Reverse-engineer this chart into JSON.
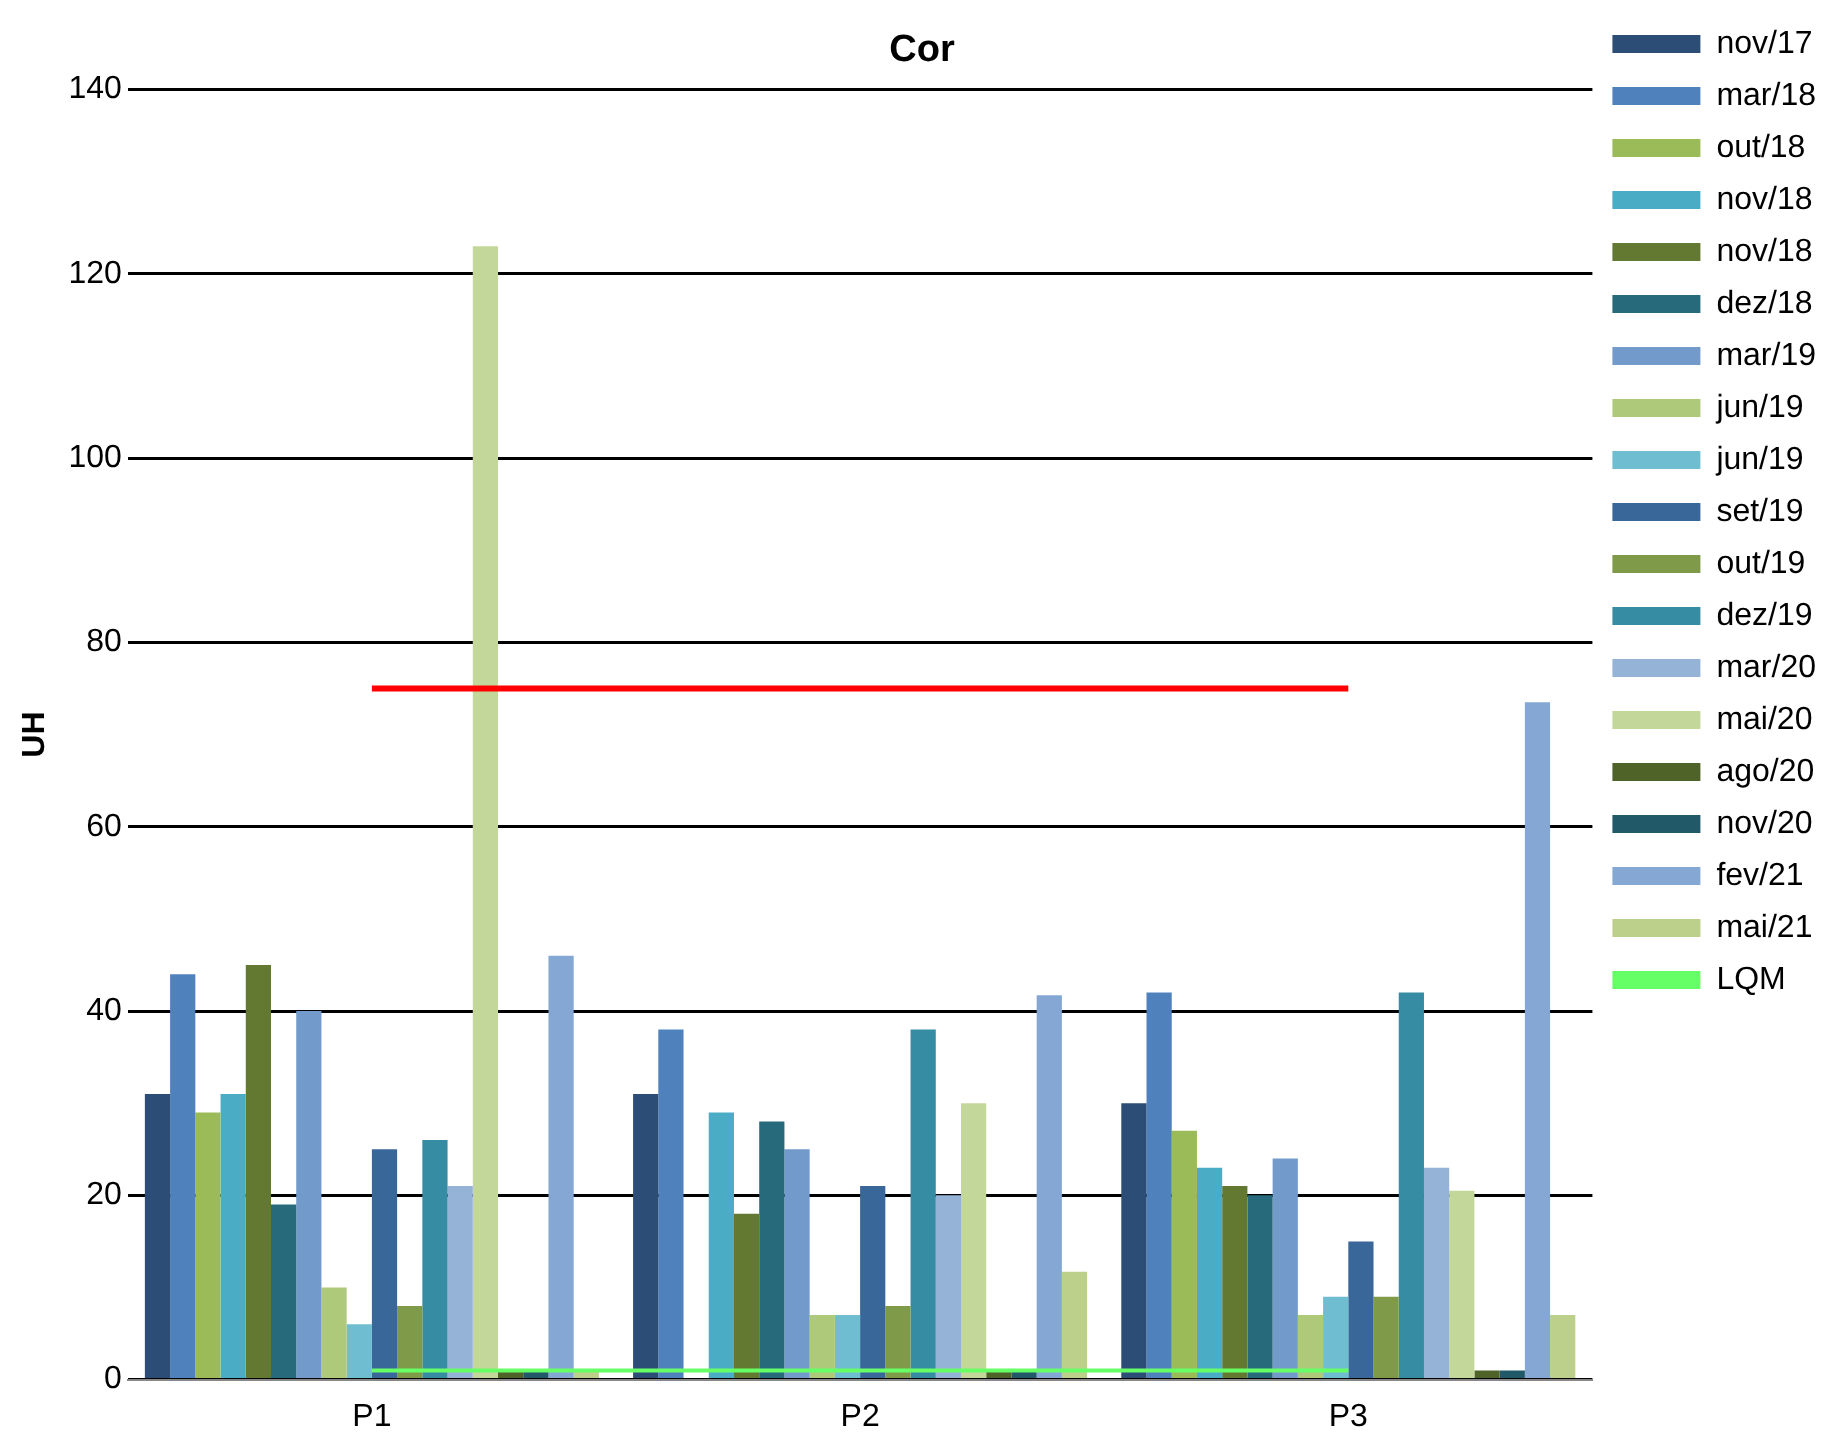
{
  "chart_data": {
    "type": "bar",
    "title": "Cor",
    "ylabel": "UH",
    "categories": [
      "P1",
      "P2",
      "P3"
    ],
    "ylim": [
      0,
      140
    ],
    "yticks": [
      0,
      20,
      40,
      60,
      80,
      100,
      120,
      140
    ],
    "grid": "y",
    "legend": "right",
    "marker": "none",
    "series": [
      {
        "name": "nov/17",
        "color": "#2c4d75",
        "values": [
          31,
          31,
          30
        ]
      },
      {
        "name": "mar/18",
        "color": "#4f81bd",
        "values": [
          44,
          38,
          42
        ]
      },
      {
        "name": "out/18",
        "color": "#9bbb59",
        "values": [
          29,
          null,
          27
        ]
      },
      {
        "name": "nov/18",
        "color": "#4bacc6",
        "values": [
          31,
          29,
          23
        ]
      },
      {
        "name": "nov/18",
        "color": "#637831",
        "values": [
          45,
          18,
          21
        ]
      },
      {
        "name": "dez/18",
        "color": "#276a7c",
        "values": [
          19,
          28,
          20
        ]
      },
      {
        "name": "mar/19",
        "color": "#729aca",
        "values": [
          40,
          25,
          24
        ]
      },
      {
        "name": "jun/19",
        "color": "#afc97a",
        "values": [
          10,
          7,
          7
        ]
      },
      {
        "name": "jun/19",
        "color": "#6fbdd1",
        "values": [
          6,
          7,
          9
        ]
      },
      {
        "name": "set/19",
        "color": "#3a6799",
        "values": [
          25,
          21,
          15
        ]
      },
      {
        "name": "out/19",
        "color": "#7f9a48",
        "values": [
          8,
          8,
          9
        ]
      },
      {
        "name": "dez/19",
        "color": "#358ca3",
        "values": [
          26,
          38,
          42
        ]
      },
      {
        "name": "mar/20",
        "color": "#95b3d7",
        "values": [
          21,
          20,
          23
        ]
      },
      {
        "name": "mai/20",
        "color": "#c4d79b",
        "values": [
          123,
          30,
          20.5
        ]
      },
      {
        "name": "ago/20",
        "color": "#4f6228",
        "values": [
          1,
          1,
          1
        ]
      },
      {
        "name": "nov/20",
        "color": "#215968",
        "values": [
          1,
          1,
          1
        ]
      },
      {
        "name": "fev/21",
        "color": "#84a7d3",
        "values": [
          46,
          41.7,
          73.5
        ]
      },
      {
        "name": "mai/21",
        "color": "#bcd08c",
        "values": [
          1,
          11.7,
          7
        ]
      },
      {
        "name": "LQM",
        "type": "line",
        "color": "#66ff66",
        "values": [
          1,
          1,
          1
        ]
      },
      {
        "type": "line",
        "color": "#ff0000",
        "values": [
          75,
          75,
          75
        ]
      }
    ]
  }
}
